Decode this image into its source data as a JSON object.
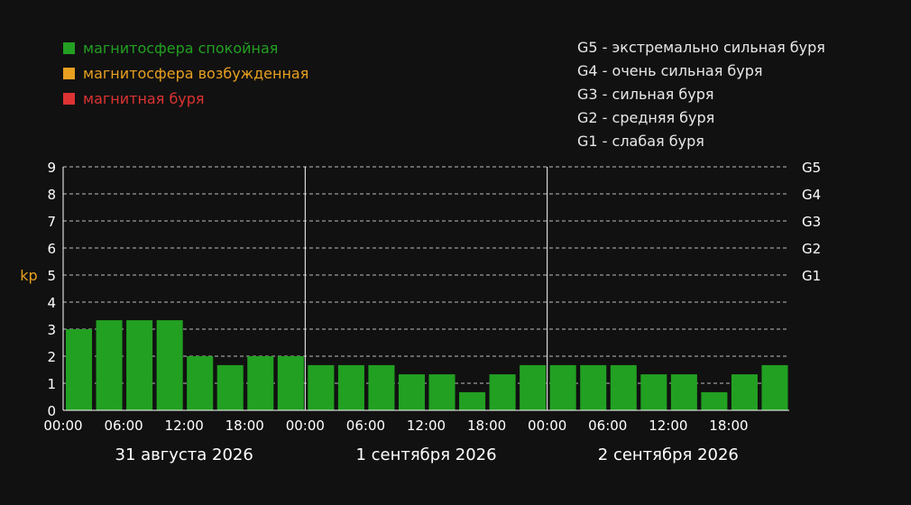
{
  "legend": [
    {
      "label": "магнитосфера спокойная",
      "color": "#22a022"
    },
    {
      "label": "магнитосфера возбужденная",
      "color": "#e8a020"
    },
    {
      "label": "магнитная буря",
      "color": "#dd3333"
    }
  ],
  "g_scale": [
    "G5 - экстремально сильная буря",
    "G4 - очень сильная буря",
    "G3 - сильная буря",
    "G2 - средняя буря",
    "G1 - слабая буря"
  ],
  "chart_data": {
    "type": "bar",
    "ylabel": "kp",
    "ylim": [
      0,
      9
    ],
    "yticks": [
      0,
      1,
      2,
      3,
      4,
      5,
      6,
      7,
      8,
      9
    ],
    "y_right_labels": [
      {
        "value": 9,
        "label": "G5"
      },
      {
        "value": 8,
        "label": "G4"
      },
      {
        "value": 7,
        "label": "G3"
      },
      {
        "value": 6,
        "label": "G2"
      },
      {
        "value": 5,
        "label": "G1"
      }
    ],
    "grid": "dashed horizontal",
    "days": [
      {
        "label": "31 августа 2026",
        "ticks": [
          "00:00",
          "06:00",
          "12:00",
          "18:00"
        ],
        "values": [
          3,
          3.33,
          3.33,
          3.33,
          2,
          1.67,
          2,
          2
        ]
      },
      {
        "label": "1 сентября 2026",
        "ticks": [
          "00:00",
          "06:00",
          "12:00",
          "18:00"
        ],
        "values": [
          1.67,
          1.67,
          1.67,
          1.33,
          1.33,
          0.67,
          1.33,
          1.67
        ]
      },
      {
        "label": "2 сентября 2026",
        "ticks": [
          "00:00",
          "06:00",
          "12:00",
          "18:00"
        ],
        "values": [
          1.67,
          1.67,
          1.67,
          1.33,
          1.33,
          0.67,
          1.33,
          1.67
        ]
      }
    ],
    "bar_color": "#22a022",
    "axis_color": "#ffffff",
    "ylabel_color": "#e8a020"
  }
}
